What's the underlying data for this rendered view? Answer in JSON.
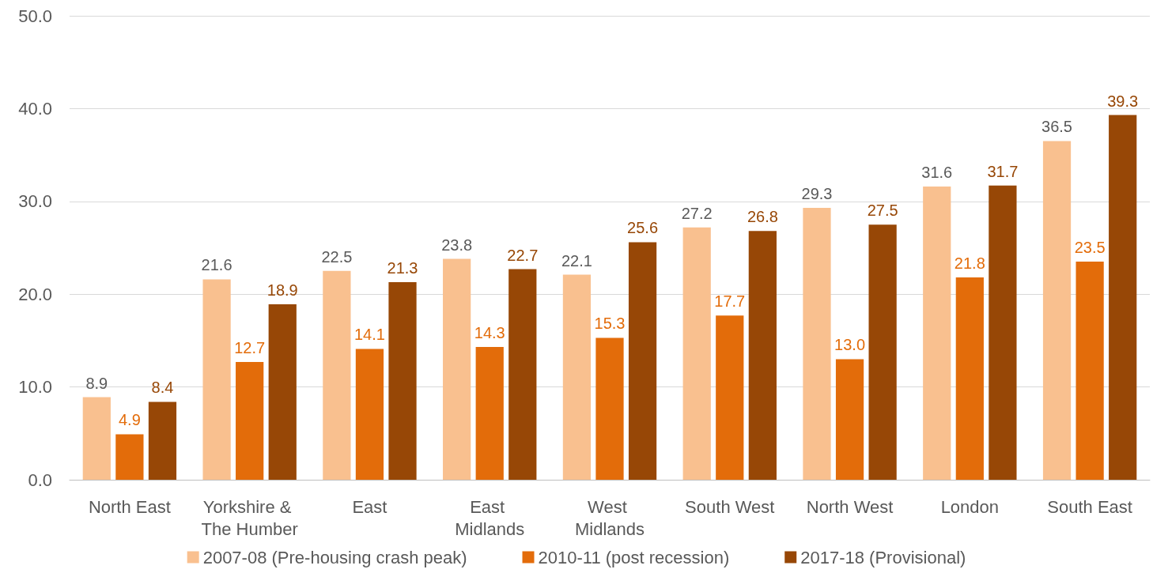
{
  "chart_data": {
    "type": "bar",
    "categories": [
      "North East",
      "Yorkshire & The Humber",
      "East",
      "East Midlands",
      "West Midlands",
      "South West",
      "North West",
      "London",
      "South East"
    ],
    "series": [
      {
        "name": "2007-08 (Pre-housing crash peak)",
        "color": "#f9c08f",
        "values": [
          8.9,
          21.6,
          22.5,
          23.8,
          22.1,
          27.2,
          29.3,
          31.6,
          36.5
        ],
        "value_labels": [
          "8.9",
          "21.6",
          "22.5",
          "23.8",
          "22.1",
          "27.2",
          "29.3",
          "31.6",
          "36.5"
        ]
      },
      {
        "name": "2010-11 (post recession)",
        "color": "#e36c0a",
        "values": [
          4.9,
          12.7,
          14.1,
          14.3,
          15.3,
          17.7,
          13.0,
          21.8,
          23.5
        ],
        "value_labels": [
          "4.9",
          "12.7",
          "14.1",
          "14.3",
          "15.3",
          "17.7",
          "13.0",
          "21.8",
          "23.5"
        ]
      },
      {
        "name": "2017-18 (Provisional)",
        "color": "#974706",
        "values": [
          8.4,
          18.9,
          21.3,
          22.7,
          25.6,
          26.8,
          27.5,
          31.7,
          39.3
        ],
        "value_labels": [
          "8.4",
          "18.9",
          "21.3",
          "22.7",
          "25.6",
          "26.8",
          "27.5",
          "31.7",
          "39.3"
        ]
      }
    ],
    "ylim": [
      0,
      50
    ],
    "yticks": [
      {
        "value": 0,
        "label": "0.0"
      },
      {
        "value": 10,
        "label": "10.0"
      },
      {
        "value": 20,
        "label": "20.0"
      },
      {
        "value": 30,
        "label": "30.0"
      },
      {
        "value": 40,
        "label": "40.0"
      },
      {
        "value": 50,
        "label": "50.0"
      }
    ],
    "grid": "y",
    "legend": "bottom"
  }
}
